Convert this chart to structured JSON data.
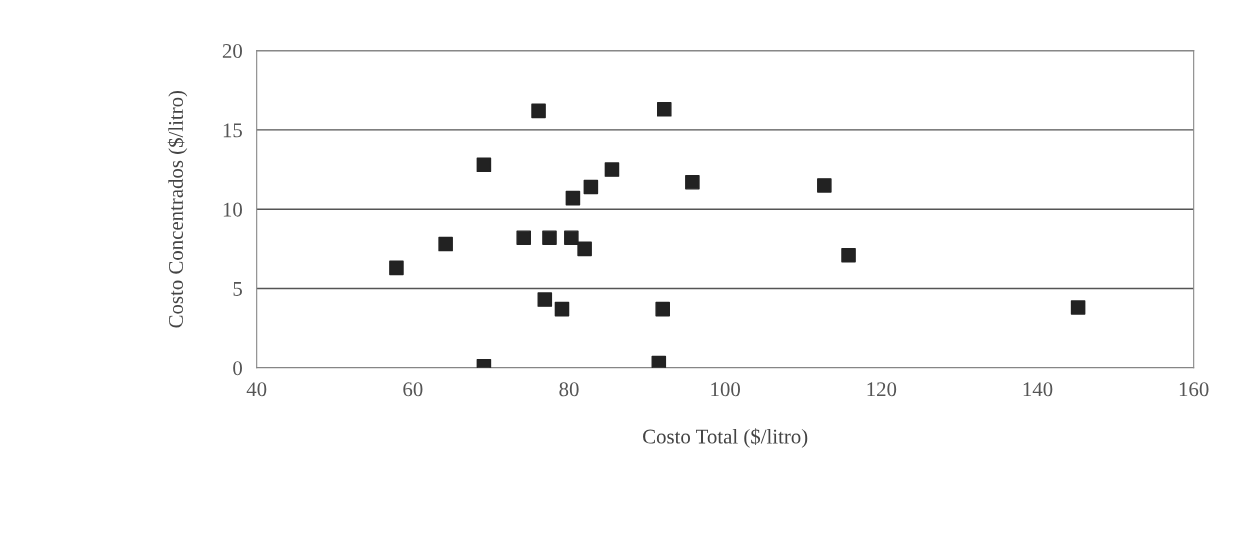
{
  "chart_data": {
    "type": "scatter",
    "xlabel": "Costo Total ($/litro)",
    "ylabel": "Costo Concentrados ($/litro)",
    "x": [
      57.9,
      64.2,
      69.1,
      69.1,
      74.2,
      76.1,
      76.9,
      77.5,
      79.1,
      80.3,
      80.5,
      82.0,
      82.8,
      85.5,
      91.5,
      92.0,
      92.2,
      95.8,
      112.7,
      115.8,
      145.2
    ],
    "values": [
      6.3,
      7.8,
      12.8,
      0.1,
      8.2,
      16.2,
      4.3,
      8.2,
      3.7,
      8.2,
      10.7,
      7.5,
      11.4,
      12.5,
      0.3,
      3.7,
      16.3,
      11.7,
      11.5,
      7.1,
      3.8
    ],
    "color": "#222222",
    "marker": "square",
    "xlim": [
      40,
      160
    ],
    "xticks": [
      40,
      60,
      80,
      100,
      120,
      140,
      160
    ],
    "ylim": [
      0,
      20
    ],
    "yticks": [
      0,
      5,
      10,
      15,
      20
    ],
    "grid": "y"
  }
}
